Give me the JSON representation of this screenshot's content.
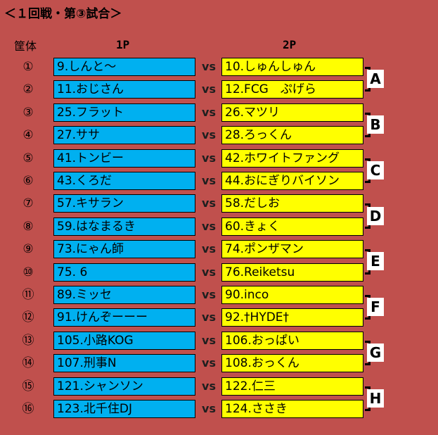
{
  "title": "＜１回戦・第③試合＞",
  "headers": {
    "kitai": "筐体",
    "p1": "1P",
    "p2": "2P"
  },
  "vs_label": "vs",
  "rows": [
    {
      "num": "①",
      "p1": "9.しんと〜",
      "p2": "10.しゅんしゅん"
    },
    {
      "num": "②",
      "p1": "11.おじさん",
      "p2": "12.FCG　ぷげら"
    },
    {
      "num": "③",
      "p1": "25.フラット",
      "p2": "26.マツリ"
    },
    {
      "num": "④",
      "p1": "27.ササ",
      "p2": "28.ろっくん"
    },
    {
      "num": "⑤",
      "p1": "41.トンビー",
      "p2": "42.ホワイトファング"
    },
    {
      "num": "⑥",
      "p1": "43.くろだ",
      "p2": "44.おにぎりバイソン"
    },
    {
      "num": "⑦",
      "p1": "57.キサラン",
      "p2": "58.だしお"
    },
    {
      "num": "⑧",
      "p1": "59.はなまるき",
      "p2": "60.きょく"
    },
    {
      "num": "⑨",
      "p1": "73.にゃん師",
      "p2": "74.ポンザマン"
    },
    {
      "num": "⑩",
      "p1": "75. 6",
      "p2": "76.Reiketsu"
    },
    {
      "num": "⑪",
      "p1": "89.ミッセ",
      "p2": "90.inco"
    },
    {
      "num": "⑫",
      "p1": "91.けんぞーーー",
      "p2": "92.†HYDE†"
    },
    {
      "num": "⑬",
      "p1": "105.小路KOG",
      "p2": "106.おっぱい"
    },
    {
      "num": "⑭",
      "p1": "107.刑事N",
      "p2": "108.おっくん"
    },
    {
      "num": "⑮",
      "p1": "121.シャンソン",
      "p2": "122.仁三"
    },
    {
      "num": "⑯",
      "p1": "123.北千住DJ",
      "p2": "124.ささき"
    }
  ],
  "groups": [
    "A",
    "B",
    "C",
    "D",
    "E",
    "F",
    "G",
    "H"
  ]
}
